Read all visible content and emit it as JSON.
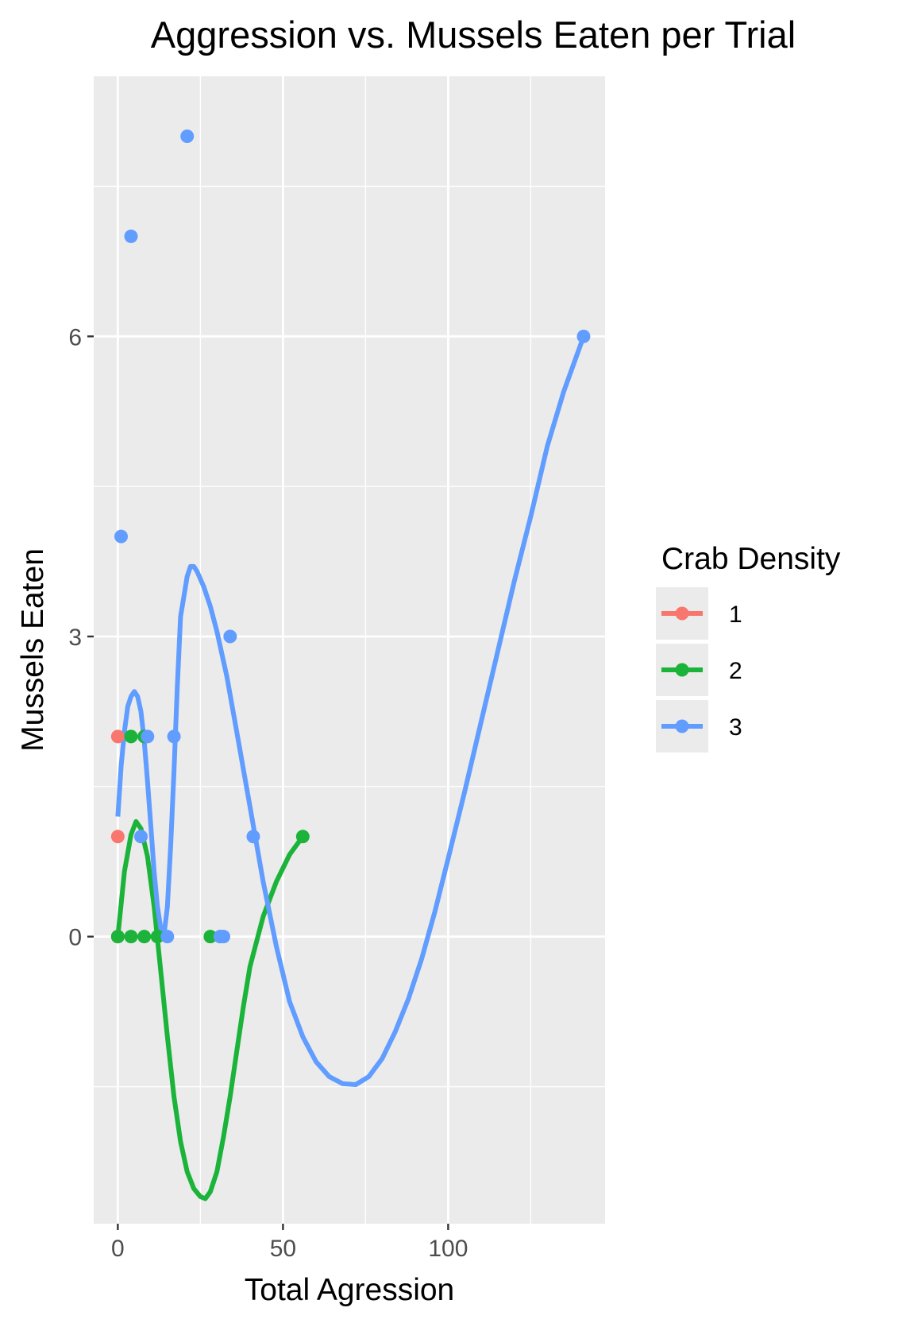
{
  "chart_data": {
    "type": "scatter",
    "title": "Aggression vs. Mussels Eaten per Trial",
    "xlabel": "Total Agression",
    "ylabel": "Mussels Eaten",
    "xlim": [
      -7.3,
      147.5
    ],
    "ylim": [
      -2.87,
      8.6
    ],
    "x_ticks": [
      0,
      50,
      100
    ],
    "y_ticks": [
      0,
      3,
      6
    ],
    "grid": true,
    "legend_title": "Crab Density",
    "legend_position": "right",
    "series": [
      {
        "name": "1",
        "color": "#F8766D",
        "points": [
          [
            0,
            2
          ],
          [
            0,
            1
          ],
          [
            0,
            0
          ],
          [
            0,
            0
          ]
        ],
        "curve": []
      },
      {
        "name": "2",
        "color": "#1BB33A",
        "points": [
          [
            0,
            0
          ],
          [
            4,
            2
          ],
          [
            4,
            0
          ],
          [
            8,
            2
          ],
          [
            8,
            0
          ],
          [
            12,
            0
          ],
          [
            28,
            0
          ],
          [
            31,
            0
          ],
          [
            56,
            1
          ]
        ],
        "curve": [
          [
            0,
            0
          ],
          [
            2,
            0.65
          ],
          [
            4,
            1.02
          ],
          [
            5.5,
            1.15
          ],
          [
            7,
            1.08
          ],
          [
            9,
            0.8
          ],
          [
            11,
            0.3
          ],
          [
            13,
            -0.35
          ],
          [
            15,
            -1.0
          ],
          [
            17,
            -1.6
          ],
          [
            19,
            -2.05
          ],
          [
            21,
            -2.35
          ],
          [
            23,
            -2.52
          ],
          [
            25,
            -2.6
          ],
          [
            26.5,
            -2.62
          ],
          [
            28,
            -2.55
          ],
          [
            30,
            -2.35
          ],
          [
            32,
            -2.0
          ],
          [
            34,
            -1.6
          ],
          [
            36,
            -1.15
          ],
          [
            38,
            -0.7
          ],
          [
            40,
            -0.3
          ],
          [
            44,
            0.2
          ],
          [
            48,
            0.55
          ],
          [
            52,
            0.82
          ],
          [
            56,
            1.0
          ]
        ]
      },
      {
        "name": "3",
        "color": "#619CFF",
        "points": [
          [
            1,
            4
          ],
          [
            4,
            7
          ],
          [
            7,
            1
          ],
          [
            9,
            2
          ],
          [
            15,
            0
          ],
          [
            17,
            2
          ],
          [
            21,
            8
          ],
          [
            31,
            0
          ],
          [
            32,
            0
          ],
          [
            34,
            3
          ],
          [
            41,
            1
          ],
          [
            141,
            6
          ]
        ],
        "curve": [
          [
            0,
            1.2
          ],
          [
            1,
            1.7
          ],
          [
            2,
            2.05
          ],
          [
            3,
            2.3
          ],
          [
            4,
            2.4
          ],
          [
            5,
            2.45
          ],
          [
            6,
            2.4
          ],
          [
            7,
            2.25
          ],
          [
            8,
            1.95
          ],
          [
            9,
            1.55
          ],
          [
            10,
            1.1
          ],
          [
            11,
            0.65
          ],
          [
            12,
            0.3
          ],
          [
            13,
            0.08
          ],
          [
            14,
            0.02
          ],
          [
            15,
            0.3
          ],
          [
            16,
            0.9
          ],
          [
            17,
            1.65
          ],
          [
            18,
            2.5
          ],
          [
            19,
            3.2
          ],
          [
            20,
            3.4
          ],
          [
            21,
            3.6
          ],
          [
            22,
            3.7
          ],
          [
            23,
            3.7
          ],
          [
            24,
            3.65
          ],
          [
            26,
            3.5
          ],
          [
            28,
            3.3
          ],
          [
            30,
            3.05
          ],
          [
            33,
            2.6
          ],
          [
            36,
            2.05
          ],
          [
            40,
            1.3
          ],
          [
            44,
            0.55
          ],
          [
            48,
            -0.1
          ],
          [
            52,
            -0.65
          ],
          [
            56,
            -1.0
          ],
          [
            60,
            -1.25
          ],
          [
            64,
            -1.4
          ],
          [
            68,
            -1.47
          ],
          [
            72,
            -1.48
          ],
          [
            76,
            -1.4
          ],
          [
            80,
            -1.22
          ],
          [
            84,
            -0.95
          ],
          [
            88,
            -0.62
          ],
          [
            92,
            -0.22
          ],
          [
            96,
            0.25
          ],
          [
            100,
            0.78
          ],
          [
            105,
            1.45
          ],
          [
            110,
            2.15
          ],
          [
            115,
            2.85
          ],
          [
            120,
            3.55
          ],
          [
            125,
            4.2
          ],
          [
            130,
            4.9
          ],
          [
            135,
            5.45
          ],
          [
            141,
            6.0
          ]
        ]
      }
    ]
  }
}
